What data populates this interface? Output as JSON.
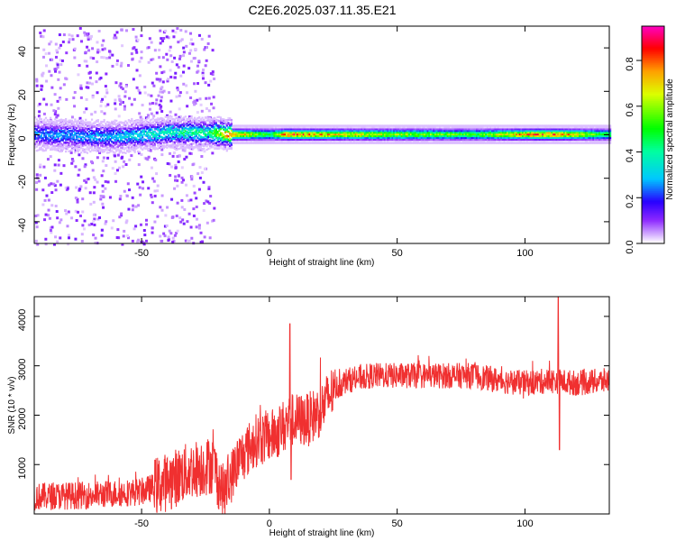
{
  "title": "C2E6.2025.037.11.35.E21",
  "chart_data": [
    {
      "type": "heatmap",
      "xlabel": "Height of straight line (km)",
      "ylabel": "Frequency (Hz)",
      "xlim": [
        -92,
        133
      ],
      "ylim": [
        -50,
        50
      ],
      "xticks": [
        -50,
        0,
        50,
        100
      ],
      "yticks": [
        -40,
        -20,
        0,
        20,
        40
      ],
      "colorbar": {
        "label": "Normalized spectral amplitude",
        "range": [
          0,
          0.95
        ],
        "ticks": [
          0.0,
          0.2,
          0.4,
          0.6,
          0.8
        ],
        "colormap": "rainbow"
      },
      "ridge": {
        "description_values": [
          {
            "x": -85,
            "center_hz": 0,
            "amplitude": 0.3
          },
          {
            "x": -60,
            "center_hz": -1,
            "amplitude": 0.35
          },
          {
            "x": -40,
            "center_hz": 1,
            "amplitude": 0.45
          },
          {
            "x": -25,
            "center_hz": 1,
            "amplitude": 0.5
          },
          {
            "x": -15,
            "center_hz": 0,
            "amplitude": 0.9
          },
          {
            "x": 0,
            "center_hz": 0,
            "amplitude": 0.55
          },
          {
            "x": 7,
            "center_hz": 0,
            "amplitude": 0.95
          },
          {
            "x": 25,
            "center_hz": 0,
            "amplitude": 0.8
          },
          {
            "x": 50,
            "center_hz": 0,
            "amplitude": 0.7
          },
          {
            "x": 80,
            "center_hz": 0,
            "amplitude": 0.6
          },
          {
            "x": 105,
            "center_hz": 0,
            "amplitude": 0.95
          },
          {
            "x": 113,
            "center_hz": 0,
            "amplitude": 0.9
          },
          {
            "x": 130,
            "center_hz": 0,
            "amplitude": 0.6
          }
        ]
      }
    },
    {
      "type": "line",
      "xlabel": "Height of straight line (km)",
      "ylabel": "SNR (10 * v/v)",
      "xlim": [
        -92,
        133
      ],
      "ylim": [
        0,
        4400
      ],
      "xticks": [
        -50,
        0,
        50,
        100
      ],
      "yticks": [
        1000,
        2000,
        3000,
        4000
      ],
      "color": "#f03030",
      "series_envelope": [
        {
          "x": -92,
          "y": 350
        },
        {
          "x": -70,
          "y": 380
        },
        {
          "x": -50,
          "y": 450
        },
        {
          "x": -40,
          "y": 650
        },
        {
          "x": -30,
          "y": 900
        },
        {
          "x": -22,
          "y": 1000
        },
        {
          "x": -18,
          "y": 400
        },
        {
          "x": -12,
          "y": 1100
        },
        {
          "x": -5,
          "y": 1500
        },
        {
          "x": 2,
          "y": 1600
        },
        {
          "x": 8,
          "y": 1900
        },
        {
          "x": 15,
          "y": 1900
        },
        {
          "x": 20,
          "y": 2100
        },
        {
          "x": 25,
          "y": 2500
        },
        {
          "x": 30,
          "y": 2700
        },
        {
          "x": 40,
          "y": 2800
        },
        {
          "x": 60,
          "y": 2800
        },
        {
          "x": 80,
          "y": 2800
        },
        {
          "x": 90,
          "y": 2700
        },
        {
          "x": 100,
          "y": 2650
        },
        {
          "x": 110,
          "y": 2700
        },
        {
          "x": 120,
          "y": 2650
        },
        {
          "x": 133,
          "y": 2700
        }
      ],
      "spikes": [
        {
          "x": 8,
          "y": 3850
        },
        {
          "x": 8.5,
          "y": 700
        },
        {
          "x": 113,
          "y": 4400
        },
        {
          "x": 113.5,
          "y": 1300
        }
      ]
    }
  ]
}
